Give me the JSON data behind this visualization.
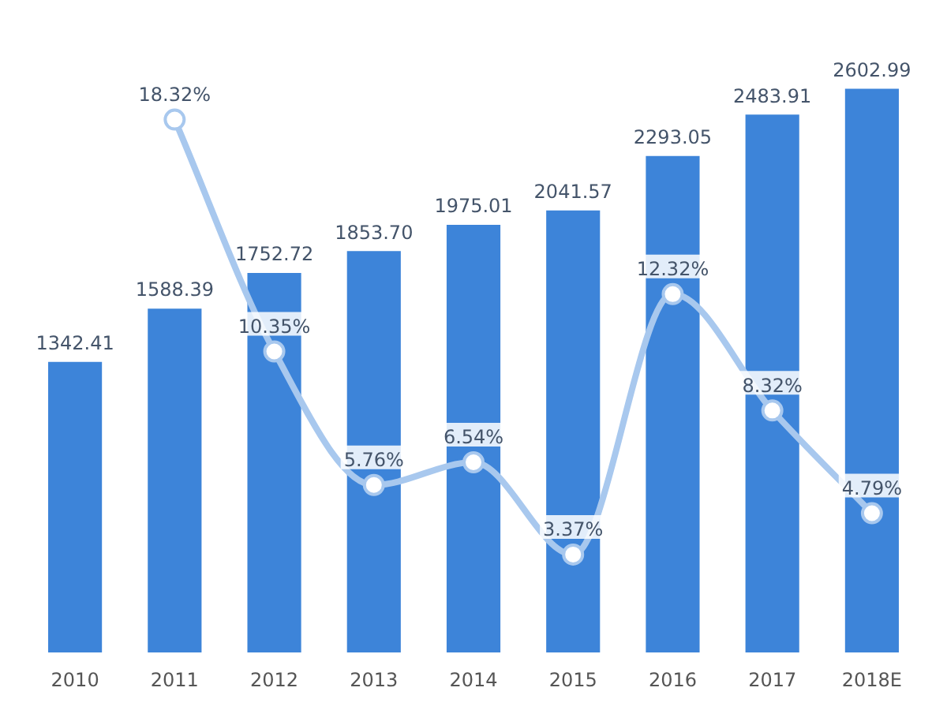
{
  "chart_data": {
    "type": "bar",
    "categories": [
      "2010",
      "2011",
      "2012",
      "2013",
      "2014",
      "2015",
      "2016",
      "2017",
      "2018E"
    ],
    "data_labels": true,
    "grid": false,
    "legend": false,
    "series": [
      {
        "color": "#3d84d9",
        "values": [
          1342.41,
          1588.39,
          1752.72,
          1853.7,
          1975.01,
          2041.57,
          2293.05,
          2483.91,
          2602.99
        ],
        "value_labels": [
          "1342.41",
          "1588.39",
          "1752.72",
          "1853.70",
          "1975.01",
          "2041.57",
          "2293.05",
          "2483.91",
          "2602.99"
        ]
      },
      {
        "type": "line",
        "axis": "y2",
        "color": "#a8c8ee",
        "marker": "circle",
        "line_style": "solid",
        "value_labels": [
          null,
          "18.32%",
          "10.35%",
          "5.76%",
          "6.54%",
          "3.37%",
          "12.32%",
          "8.32%",
          "4.79%"
        ],
        "values": [
          null,
          18.32,
          10.35,
          5.76,
          6.54,
          3.37,
          12.32,
          8.32,
          4.79
        ]
      }
    ]
  }
}
